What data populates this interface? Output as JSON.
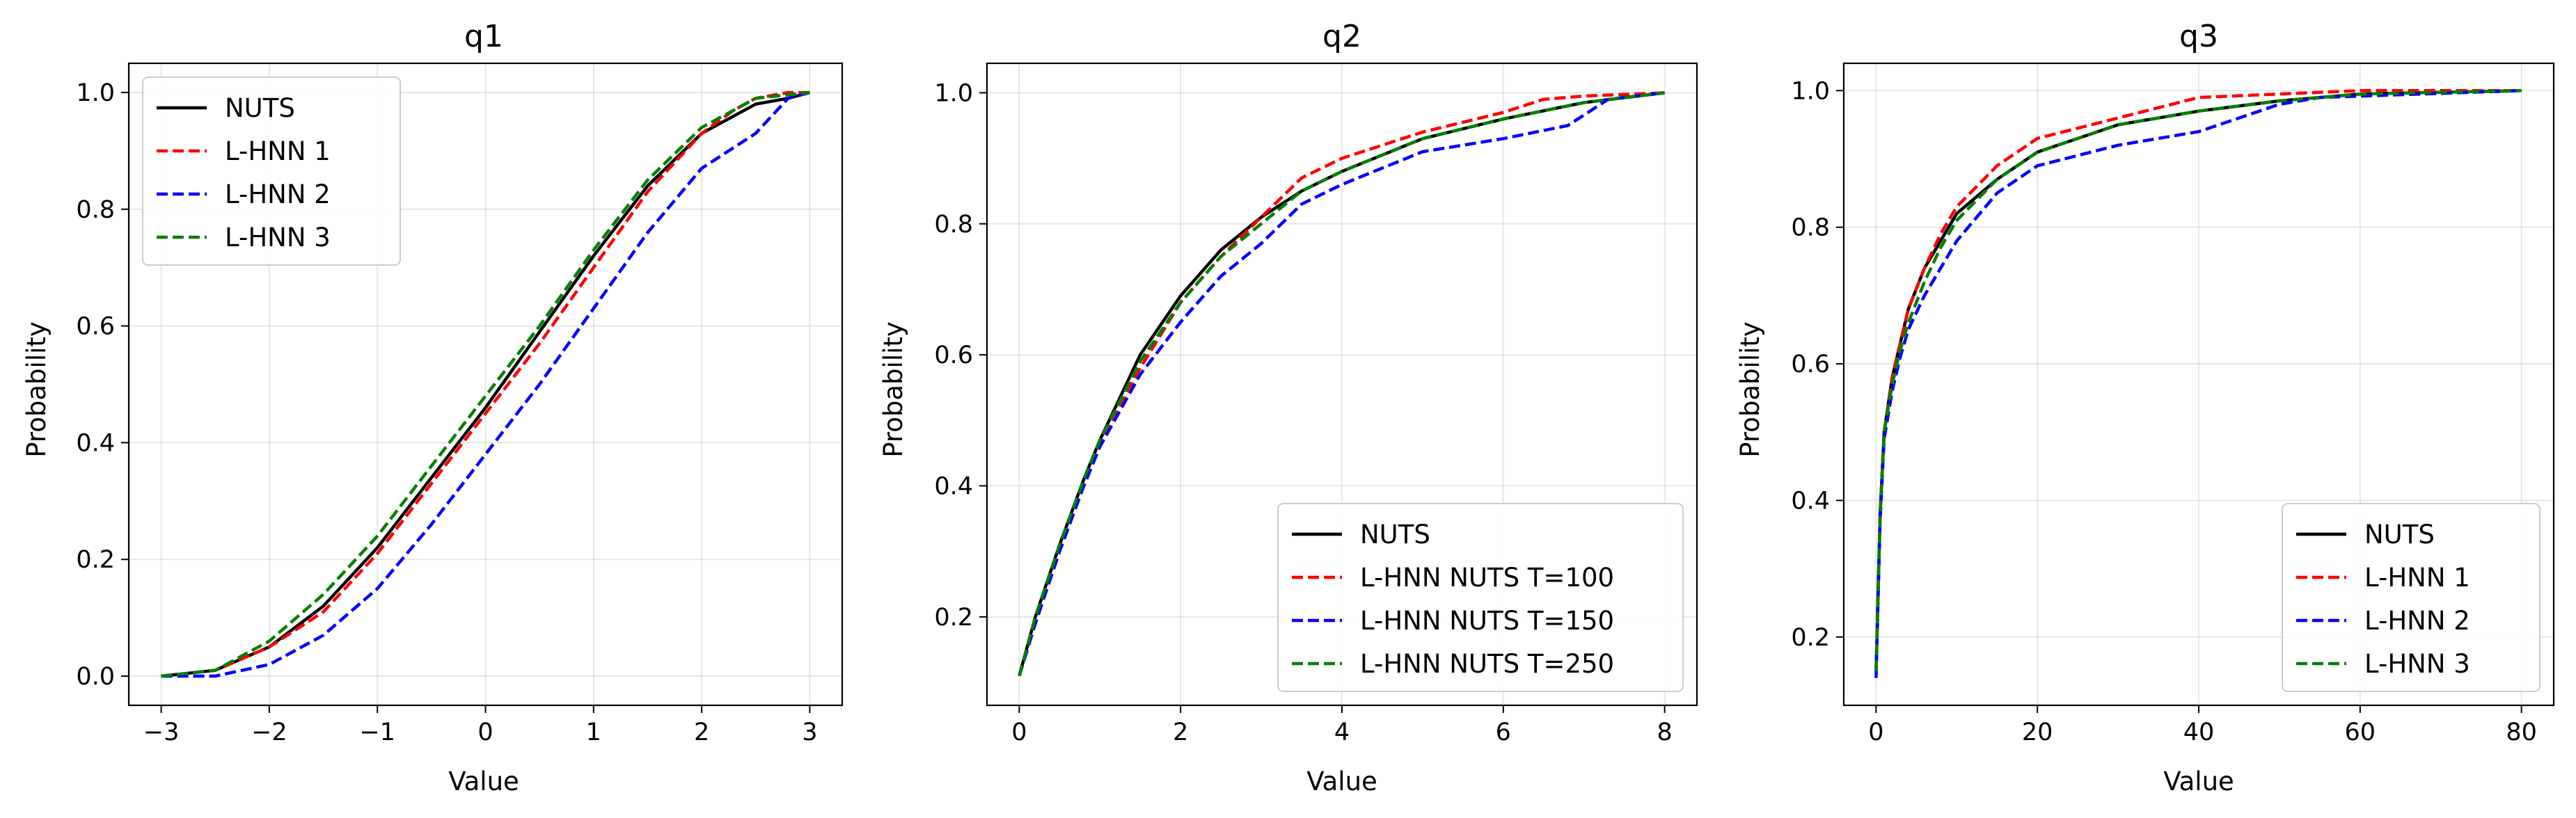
{
  "chart_data": [
    {
      "type": "line",
      "title": "q1",
      "xlabel": "Value",
      "ylabel": "Probability",
      "xlim": [
        -3.3,
        3.3
      ],
      "ylim": [
        -0.05,
        1.05
      ],
      "xticks": [
        -3,
        -2,
        -1,
        0,
        1,
        2,
        3
      ],
      "xtick_labels": [
        "−3",
        "−2",
        "−1",
        "0",
        "1",
        "2",
        "3"
      ],
      "yticks": [
        0.0,
        0.2,
        0.4,
        0.6,
        0.8,
        1.0
      ],
      "ytick_labels": [
        "0.0",
        "0.2",
        "0.4",
        "0.6",
        "0.8",
        "1.0"
      ],
      "grid": true,
      "legend_position": "upper-left",
      "series": [
        {
          "name": "NUTS",
          "color": "#000000",
          "dash": "solid",
          "x": [
            -3,
            -2.5,
            -2,
            -1.5,
            -1,
            -0.5,
            0,
            0.5,
            1,
            1.5,
            2,
            2.5,
            2.8,
            3
          ],
          "y": [
            0.0,
            0.01,
            0.05,
            0.12,
            0.22,
            0.34,
            0.46,
            0.59,
            0.72,
            0.84,
            0.93,
            0.98,
            0.99,
            1.0
          ]
        },
        {
          "name": "L-HNN 1",
          "color": "#ff0000",
          "dash": "dashed",
          "x": [
            -3,
            -2.5,
            -2,
            -1.5,
            -1,
            -0.5,
            0,
            0.5,
            1,
            1.5,
            2,
            2.3,
            2.5,
            2.8,
            3
          ],
          "y": [
            0.0,
            0.01,
            0.05,
            0.11,
            0.21,
            0.33,
            0.45,
            0.57,
            0.7,
            0.83,
            0.93,
            0.97,
            0.99,
            1.0,
            1.0
          ]
        },
        {
          "name": "L-HNN 2",
          "color": "#0000ff",
          "dash": "dashed",
          "x": [
            -3,
            -2.5,
            -2,
            -1.5,
            -1,
            -0.5,
            0,
            0.5,
            1,
            1.5,
            2,
            2.5,
            2.8,
            3
          ],
          "y": [
            0.0,
            0.0,
            0.02,
            0.07,
            0.15,
            0.26,
            0.38,
            0.5,
            0.63,
            0.76,
            0.87,
            0.93,
            0.99,
            1.0
          ]
        },
        {
          "name": "L-HNN 3",
          "color": "#008000",
          "dash": "dashed",
          "x": [
            -3,
            -2.5,
            -2,
            -1.5,
            -1,
            -0.5,
            0,
            0.5,
            1,
            1.5,
            2,
            2.5,
            3
          ],
          "y": [
            0.0,
            0.01,
            0.06,
            0.14,
            0.24,
            0.36,
            0.48,
            0.6,
            0.73,
            0.85,
            0.94,
            0.99,
            1.0
          ]
        }
      ]
    },
    {
      "type": "line",
      "title": "q2",
      "xlabel": "Value",
      "ylabel": "Probability",
      "xlim": [
        -0.4,
        8.4
      ],
      "ylim": [
        0.065,
        1.045
      ],
      "xticks": [
        0,
        2,
        4,
        6,
        8
      ],
      "xtick_labels": [
        "0",
        "2",
        "4",
        "6",
        "8"
      ],
      "yticks": [
        0.2,
        0.4,
        0.6,
        0.8,
        1.0
      ],
      "ytick_labels": [
        "0.2",
        "0.4",
        "0.6",
        "0.8",
        "1.0"
      ],
      "grid": true,
      "legend_position": "lower-right",
      "series": [
        {
          "name": "NUTS",
          "color": "#000000",
          "dash": "solid",
          "x": [
            0,
            0.2,
            0.5,
            0.8,
            1,
            1.5,
            2,
            2.5,
            3,
            3.5,
            4,
            5,
            6,
            7,
            8
          ],
          "y": [
            0.11,
            0.2,
            0.31,
            0.41,
            0.47,
            0.6,
            0.69,
            0.76,
            0.81,
            0.85,
            0.88,
            0.93,
            0.96,
            0.985,
            1.0
          ]
        },
        {
          "name": "L-HNN NUTS T=100",
          "color": "#ff0000",
          "dash": "dashed",
          "x": [
            0,
            0.2,
            0.5,
            0.8,
            1,
            1.5,
            2,
            2.5,
            3,
            3.5,
            4,
            5,
            6,
            6.5,
            7,
            8
          ],
          "y": [
            0.11,
            0.19,
            0.3,
            0.4,
            0.46,
            0.58,
            0.68,
            0.75,
            0.81,
            0.87,
            0.9,
            0.94,
            0.97,
            0.99,
            0.995,
            1.0
          ]
        },
        {
          "name": "L-HNN NUTS T=150",
          "color": "#0000ff",
          "dash": "dashed",
          "x": [
            0,
            0.2,
            0.5,
            0.8,
            1,
            1.5,
            2,
            2.5,
            3,
            3.5,
            4,
            5,
            6,
            6.8,
            7.3,
            8
          ],
          "y": [
            0.11,
            0.19,
            0.3,
            0.4,
            0.46,
            0.57,
            0.65,
            0.72,
            0.77,
            0.83,
            0.86,
            0.91,
            0.93,
            0.95,
            0.99,
            1.0
          ]
        },
        {
          "name": "L-HNN NUTS T=250",
          "color": "#008000",
          "dash": "dashed",
          "x": [
            0,
            0.2,
            0.5,
            0.8,
            1,
            1.5,
            2,
            2.5,
            3,
            3.5,
            4,
            5,
            6,
            7,
            8
          ],
          "y": [
            0.11,
            0.2,
            0.31,
            0.41,
            0.47,
            0.59,
            0.68,
            0.75,
            0.8,
            0.85,
            0.88,
            0.93,
            0.96,
            0.985,
            1.0
          ]
        }
      ]
    },
    {
      "type": "line",
      "title": "q3",
      "xlabel": "Value",
      "ylabel": "Probability",
      "xlim": [
        -4,
        84
      ],
      "ylim": [
        0.1,
        1.04
      ],
      "xticks": [
        0,
        20,
        40,
        60,
        80
      ],
      "xtick_labels": [
        "0",
        "20",
        "40",
        "60",
        "80"
      ],
      "yticks": [
        0.2,
        0.4,
        0.6,
        0.8,
        1.0
      ],
      "ytick_labels": [
        "0.2",
        "0.4",
        "0.6",
        "0.8",
        "1.0"
      ],
      "grid": true,
      "legend_position": "lower-right",
      "series": [
        {
          "name": "NUTS",
          "color": "#000000",
          "dash": "solid",
          "x": [
            0,
            0.5,
            1,
            2,
            3,
            4,
            6,
            8,
            10,
            15,
            20,
            30,
            40,
            50,
            60,
            80
          ],
          "y": [
            0.15,
            0.38,
            0.5,
            0.58,
            0.63,
            0.68,
            0.74,
            0.78,
            0.82,
            0.87,
            0.91,
            0.95,
            0.97,
            0.985,
            0.995,
            1.0
          ]
        },
        {
          "name": "L-HNN 1",
          "color": "#ff0000",
          "dash": "dashed",
          "x": [
            0,
            0.5,
            1,
            2,
            3,
            4,
            6,
            8,
            10,
            15,
            20,
            30,
            40,
            50,
            60,
            80
          ],
          "y": [
            0.15,
            0.38,
            0.5,
            0.58,
            0.63,
            0.68,
            0.74,
            0.79,
            0.83,
            0.89,
            0.93,
            0.96,
            0.99,
            0.995,
            1.0,
            1.0
          ]
        },
        {
          "name": "L-HNN 2",
          "color": "#0000ff",
          "dash": "dashed",
          "x": [
            0,
            0.5,
            1,
            2,
            3,
            4,
            6,
            8,
            10,
            15,
            20,
            30,
            40,
            45,
            50,
            55,
            80
          ],
          "y": [
            0.14,
            0.37,
            0.49,
            0.56,
            0.61,
            0.65,
            0.7,
            0.74,
            0.78,
            0.85,
            0.89,
            0.92,
            0.94,
            0.96,
            0.98,
            0.99,
            1.0
          ]
        },
        {
          "name": "L-HNN 3",
          "color": "#008000",
          "dash": "dashed",
          "x": [
            0,
            0.5,
            1,
            2,
            3,
            4,
            6,
            8,
            10,
            15,
            20,
            30,
            40,
            50,
            60,
            80
          ],
          "y": [
            0.15,
            0.38,
            0.5,
            0.57,
            0.62,
            0.66,
            0.72,
            0.77,
            0.81,
            0.87,
            0.91,
            0.95,
            0.97,
            0.985,
            0.995,
            1.0
          ]
        }
      ]
    }
  ]
}
